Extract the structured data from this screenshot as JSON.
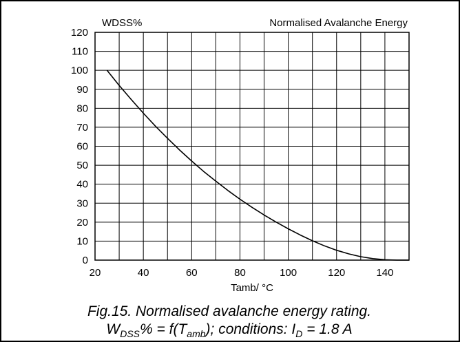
{
  "chart_data": {
    "type": "line",
    "title": "Normalised Avalanche Energy",
    "ylabel": "WDSS%",
    "xlabel": "Tamb/ °C",
    "xlim": [
      20,
      150
    ],
    "ylim": [
      0,
      120
    ],
    "x_ticks": [
      "20",
      "40",
      "60",
      "80",
      "100",
      "120",
      "140"
    ],
    "y_ticks": [
      "0",
      "10",
      "20",
      "30",
      "40",
      "50",
      "60",
      "70",
      "80",
      "90",
      "100",
      "110",
      "120"
    ],
    "grid": true,
    "series": [
      {
        "x": [
          25,
          30,
          35,
          40,
          45,
          50,
          55,
          60,
          65,
          70,
          75,
          80,
          85,
          90,
          95,
          100,
          105,
          110,
          115,
          120,
          125,
          130,
          135,
          140,
          145,
          150
        ],
        "y": [
          100,
          92,
          84.6,
          77.4,
          70.6,
          64.2,
          58,
          52.2,
          46.7,
          41.6,
          36.7,
          32.1,
          27.8,
          23.8,
          20,
          16.5,
          13.2,
          10.2,
          7.5,
          5.2,
          3.3,
          1.8,
          0.8,
          0.2,
          0,
          0
        ],
        "color": "#000000"
      }
    ],
    "caption": {
      "line1": "Fig.15.   Normalised avalanche energy rating.",
      "line2": {
        "w": "W",
        "w_sub": "DSS",
        "mid": "% = f(T",
        "t_sub": "amb",
        "tail": "); conditions: I",
        "i_sub": "D",
        "end": " = 1.8 A"
      }
    }
  }
}
